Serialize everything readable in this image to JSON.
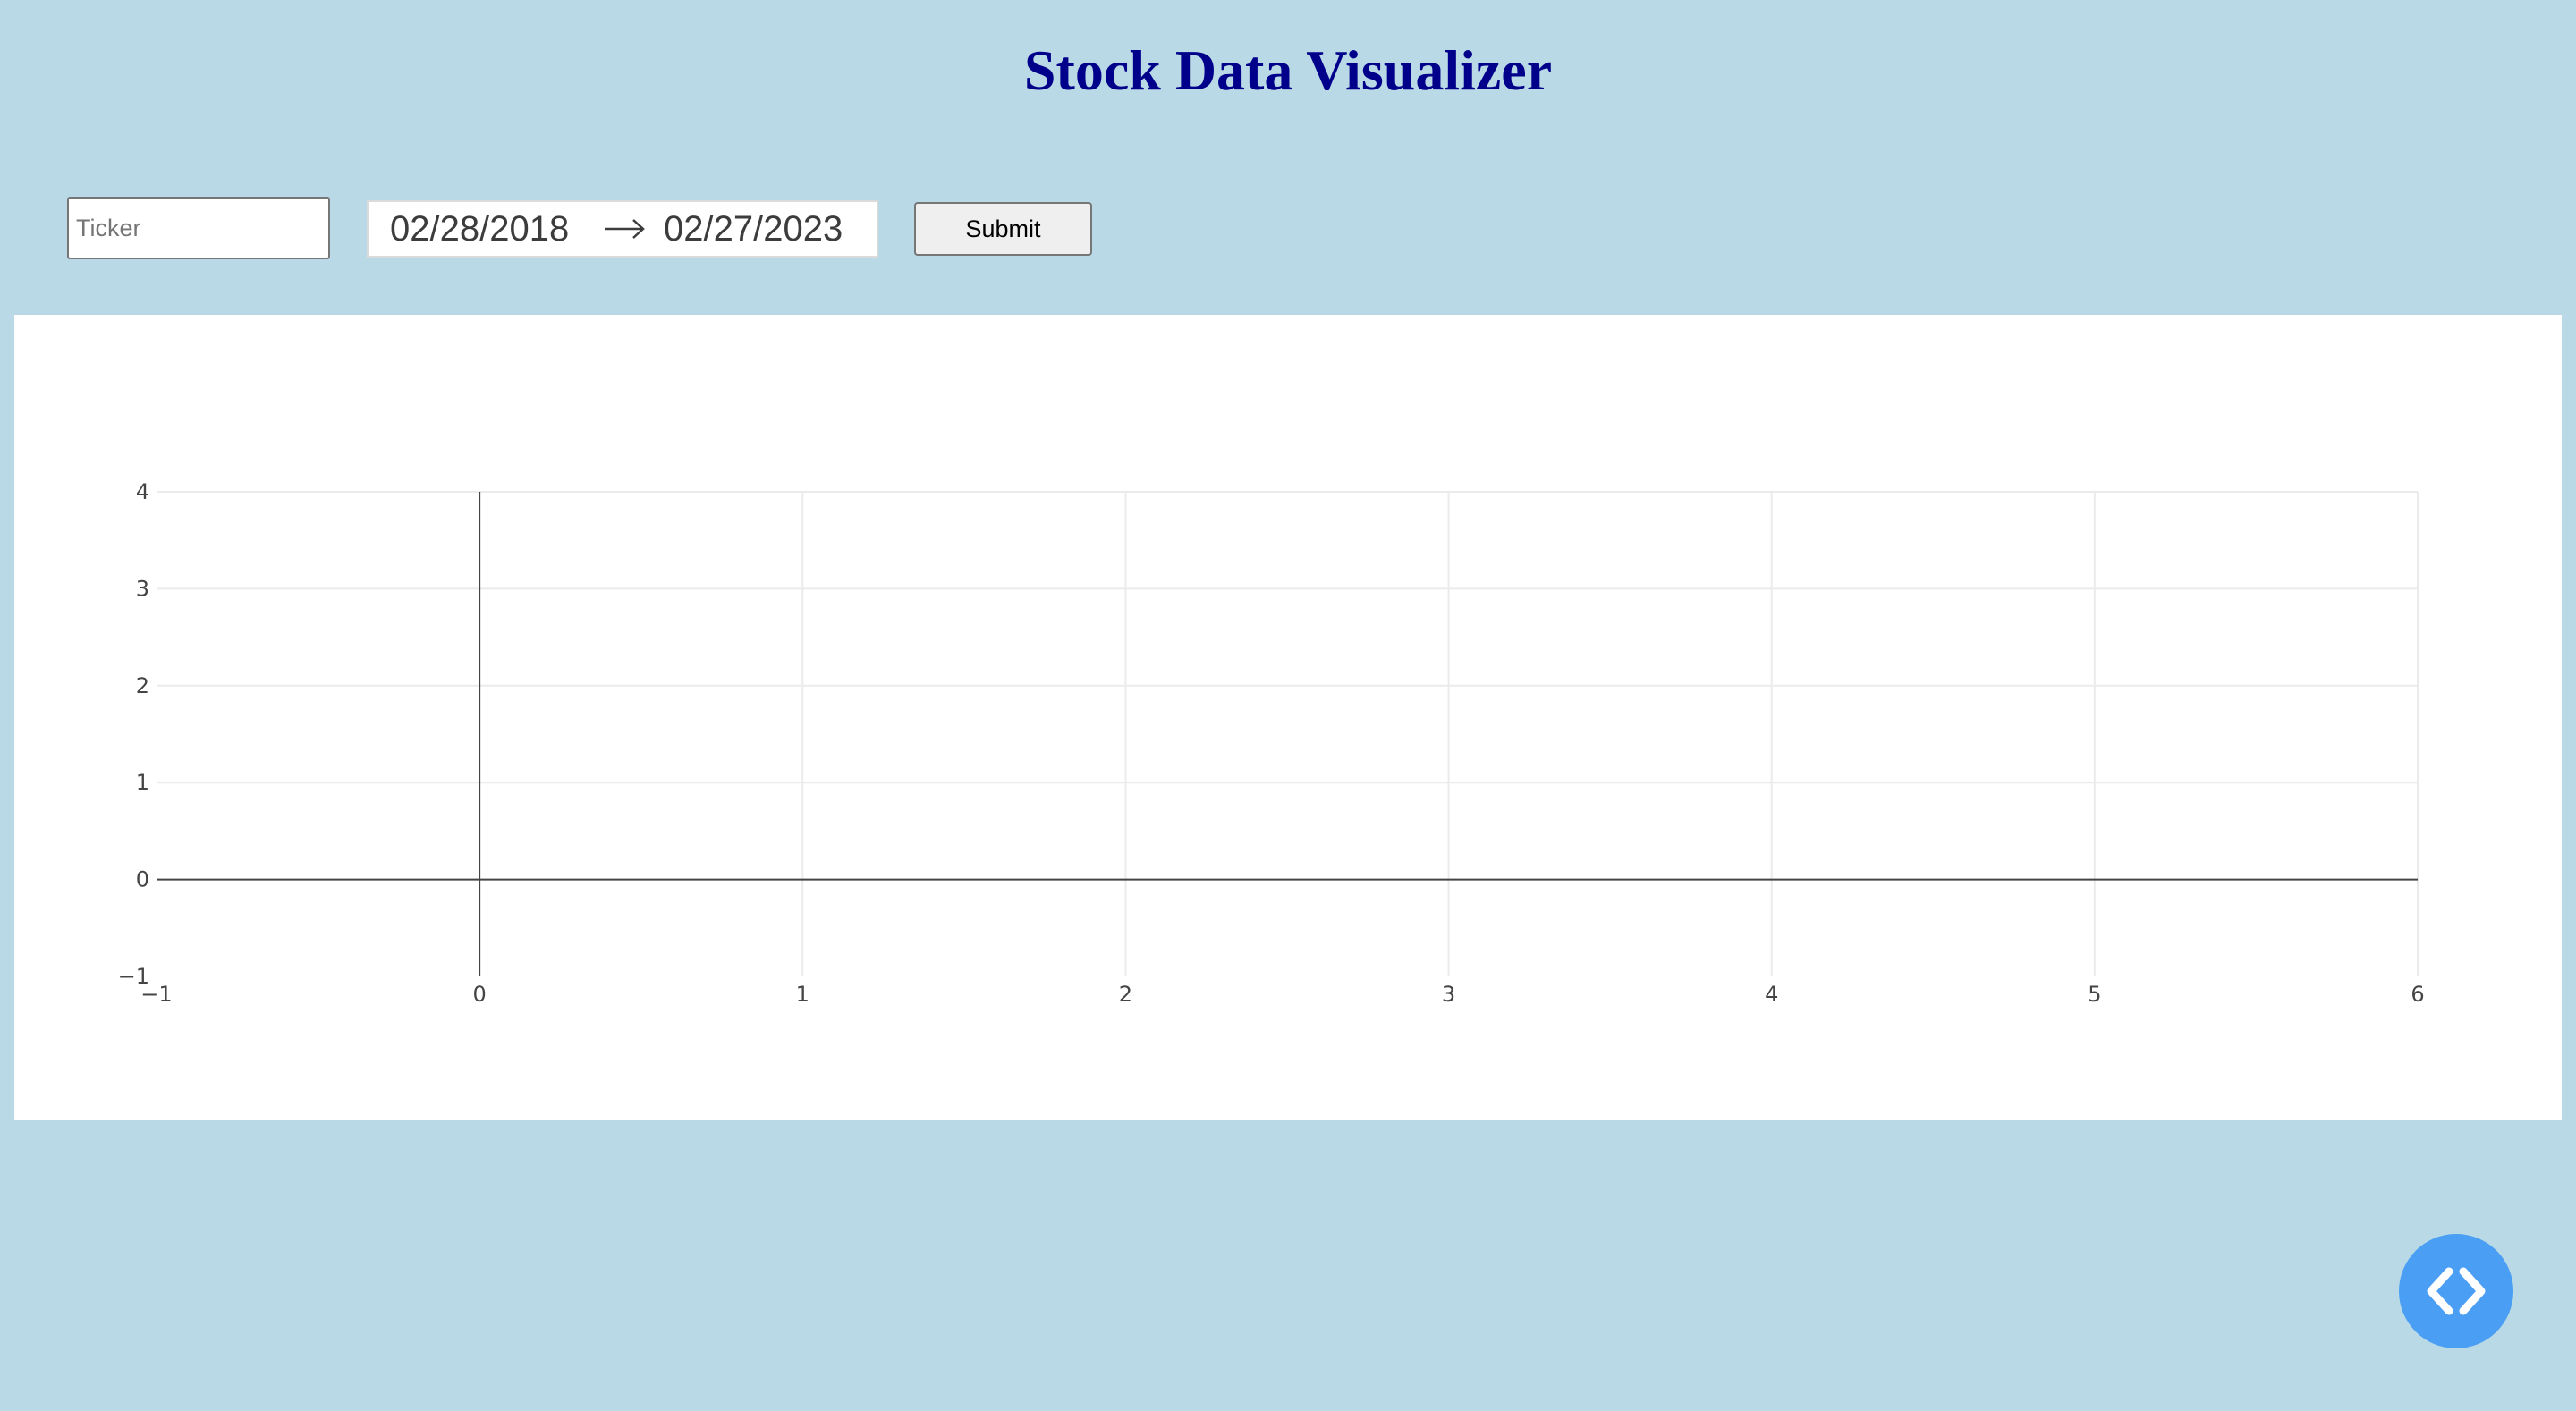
{
  "header": {
    "title": "Stock Data Visualizer"
  },
  "controls": {
    "ticker_placeholder": "Ticker",
    "ticker_value": "",
    "start_date": "02/28/2018",
    "end_date": "02/27/2023",
    "submit_label": "Submit",
    "range_separator_icon": "arrow-right-icon"
  },
  "chart_data": {
    "type": "line",
    "title": "",
    "xlabel": "",
    "ylabel": "",
    "xlim": [
      -1,
      6
    ],
    "ylim": [
      -1,
      4
    ],
    "x_ticks": [
      "−1",
      "0",
      "1",
      "2",
      "3",
      "4",
      "5",
      "6"
    ],
    "y_ticks": [
      "−1",
      "0",
      "1",
      "2",
      "3",
      "4"
    ],
    "grid": true,
    "series": []
  },
  "fab": {
    "icon": "code-icon",
    "color": "#4a9ff5"
  },
  "colors": {
    "background": "#b8d9e5",
    "title": "#00008b",
    "panel": "#ffffff"
  }
}
